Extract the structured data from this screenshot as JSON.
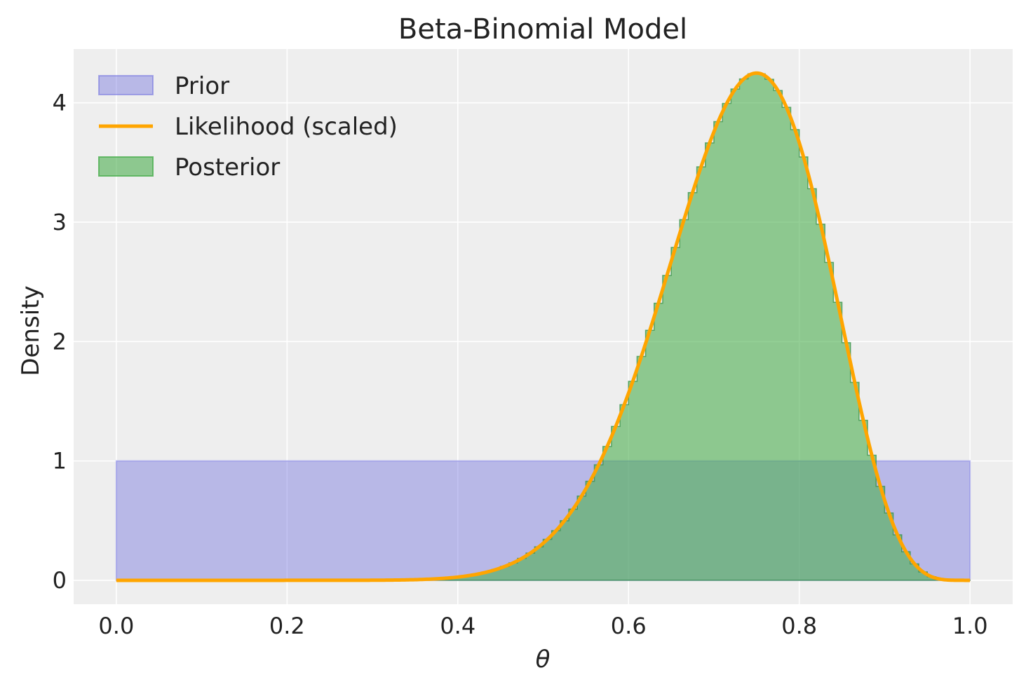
{
  "chart_data": {
    "type": "area",
    "title": "Beta-Binomial Model",
    "xlabel": "θ",
    "ylabel": "Density",
    "xlim": [
      -0.05,
      1.05
    ],
    "ylim": [
      -0.2,
      4.45
    ],
    "xticks": [
      0.0,
      0.2,
      0.4,
      0.6,
      0.8,
      1.0
    ],
    "xtick_labels": [
      "0.0",
      "0.2",
      "0.4",
      "0.6",
      "0.8",
      "1.0"
    ],
    "yticks": [
      0,
      1,
      2,
      3,
      4
    ],
    "ytick_labels": [
      "0",
      "1",
      "2",
      "3",
      "4"
    ],
    "grid": true,
    "legend_position": "top-left",
    "series": [
      {
        "name": "Prior",
        "kind": "filled-area",
        "color": "#6666dd",
        "x": [
          0.0,
          1.0
        ],
        "y": [
          1.0,
          1.0
        ]
      },
      {
        "name": "Likelihood (scaled)",
        "kind": "line",
        "color": "#ffa500",
        "distribution": "Beta(16, 6)",
        "peak": {
          "x": 0.75,
          "y": 4.25
        }
      },
      {
        "name": "Posterior",
        "kind": "step-area",
        "color": "#4caf50",
        "distribution": "Beta(16, 6)",
        "bins": 100
      }
    ]
  }
}
